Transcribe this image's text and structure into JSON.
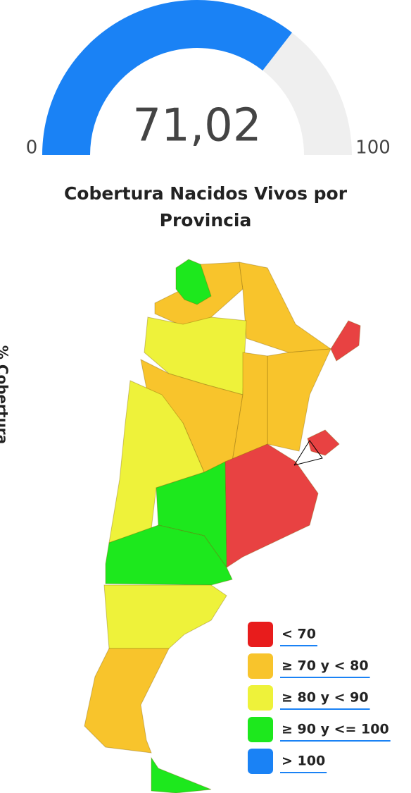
{
  "gauge": {
    "value": 71.02,
    "value_label": "71,02",
    "min": 0,
    "max": 100,
    "color": "#1a82f5",
    "track_color": "#efefef"
  },
  "map": {
    "title": [
      "Cobertura Nacidos Vivos por",
      "Provincia"
    ],
    "axis_label": "% Cobertura",
    "legend": [
      {
        "label": "< 70",
        "color": "#e81c1c"
      },
      {
        "label": "≥ 70 y < 80",
        "color": "#f8c42c"
      },
      {
        "label": "≥ 80 y < 90",
        "color": "#eef23a"
      },
      {
        "label": "≥ 90 y <= 100",
        "color": "#1de81d"
      },
      {
        "label": "> 100",
        "color": "#1a82f5"
      }
    ]
  }
}
